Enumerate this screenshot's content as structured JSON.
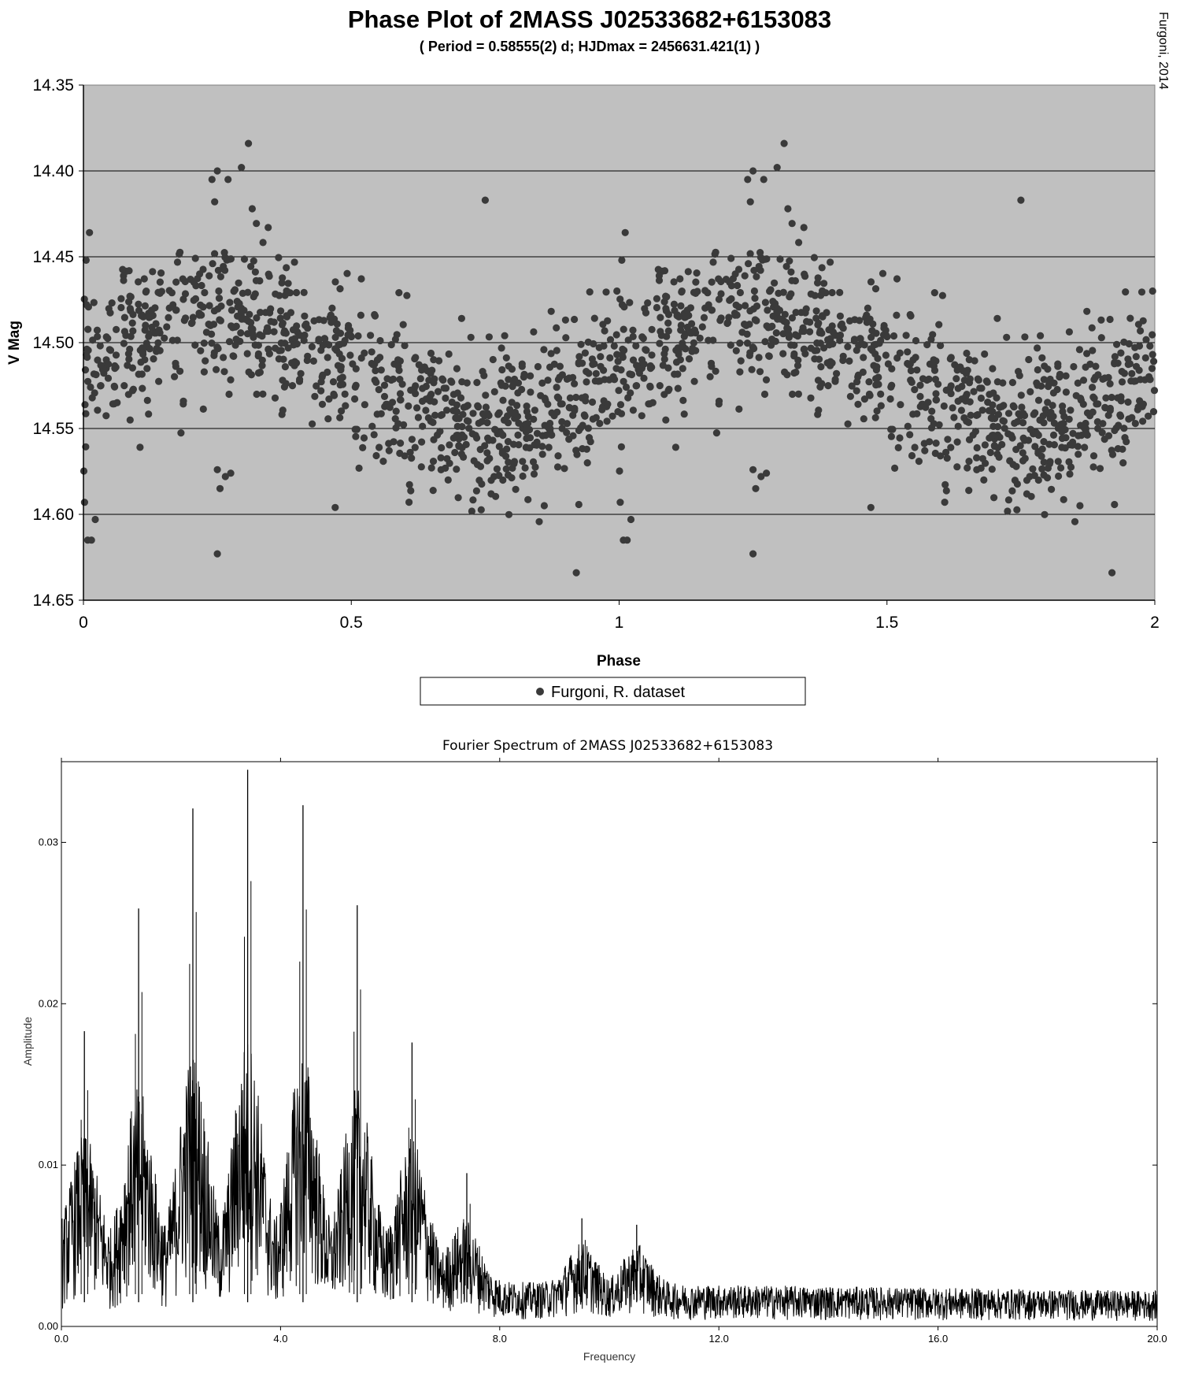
{
  "chart_data": [
    {
      "type": "scatter",
      "title": "Phase Plot of 2MASS J02533682+6153083",
      "subtitle": "( Period = 0.58555(2) d; HJDmax = 2456631.421(1) )",
      "credit": "Furgoni, 2014",
      "xlabel": "Phase",
      "ylabel": "V Mag",
      "xlim": [
        0,
        2
      ],
      "ylim": [
        14.35,
        14.65
      ],
      "y_inverted": true,
      "x_ticks": [
        "0",
        "0.5",
        "1",
        "1.5",
        "2"
      ],
      "y_ticks": [
        "14.35",
        "14.40",
        "14.45",
        "14.50",
        "14.55",
        "14.60",
        "14.65"
      ],
      "grid": "horizontal",
      "plot_background": "#c0c0c0",
      "marker_color": "#3a3a3a",
      "legend": {
        "placement": "bottom-center",
        "entries": [
          "Furgoni, R. dataset"
        ]
      },
      "series": [
        {
          "name": "Furgoni, R. dataset",
          "model": {
            "mean_mag": 14.515,
            "amplitude": 0.035,
            "phase_of_max": 0.25,
            "scatter_sigma": 0.022,
            "n_points_per_cycle": 900,
            "repeat_cycles": 2
          },
          "highlighted_points": [
            {
              "x": 0.005,
              "y": 14.452
            },
            {
              "x": 0.002,
              "y": 14.593
            },
            {
              "x": 0.008,
              "y": 14.615
            },
            {
              "x": 0.015,
              "y": 14.615
            },
            {
              "x": 0.022,
              "y": 14.603
            },
            {
              "x": 0.24,
              "y": 14.405
            },
            {
              "x": 0.245,
              "y": 14.418
            },
            {
              "x": 0.25,
              "y": 14.4
            },
            {
              "x": 0.27,
              "y": 14.405
            },
            {
              "x": 0.295,
              "y": 14.398
            },
            {
              "x": 0.308,
              "y": 14.384
            },
            {
              "x": 0.315,
              "y": 14.422
            },
            {
              "x": 0.25,
              "y": 14.574
            },
            {
              "x": 0.255,
              "y": 14.585
            },
            {
              "x": 0.265,
              "y": 14.578
            },
            {
              "x": 0.275,
              "y": 14.576
            },
            {
              "x": 0.25,
              "y": 14.623
            },
            {
              "x": 0.75,
              "y": 14.417
            },
            {
              "x": 0.92,
              "y": 14.634
            },
            {
              "x": 0.47,
              "y": 14.596
            }
          ]
        }
      ]
    },
    {
      "type": "line",
      "title": "Fourier Spectrum of 2MASS J02533682+6153083",
      "xlabel": "Frequency",
      "ylabel": "Amplitude",
      "xlim": [
        0.0,
        20.0
      ],
      "ylim": [
        0.0,
        0.035
      ],
      "x_ticks": [
        "0.0",
        "4.0",
        "8.0",
        "12.0",
        "16.0",
        "20.0"
      ],
      "y_ticks": [
        "0.00",
        "0.01",
        "0.02",
        "0.03"
      ],
      "line_color": "#000000",
      "peaks": [
        {
          "x": 0.42,
          "y": 0.0183
        },
        {
          "x": 1.41,
          "y": 0.0259
        },
        {
          "x": 2.4,
          "y": 0.0321
        },
        {
          "x": 3.4,
          "y": 0.0345
        },
        {
          "x": 4.41,
          "y": 0.0323
        },
        {
          "x": 5.4,
          "y": 0.0261
        },
        {
          "x": 6.4,
          "y": 0.0176
        },
        {
          "x": 7.4,
          "y": 0.0095
        },
        {
          "x": 9.5,
          "y": 0.0067
        },
        {
          "x": 10.5,
          "y": 0.0063
        }
      ],
      "noise_floor": [
        {
          "x": 0.0,
          "y": 0.005
        },
        {
          "x": 6.5,
          "y": 0.005
        },
        {
          "x": 7.5,
          "y": 0.0028
        },
        {
          "x": 20.0,
          "y": 0.0022
        }
      ]
    }
  ]
}
